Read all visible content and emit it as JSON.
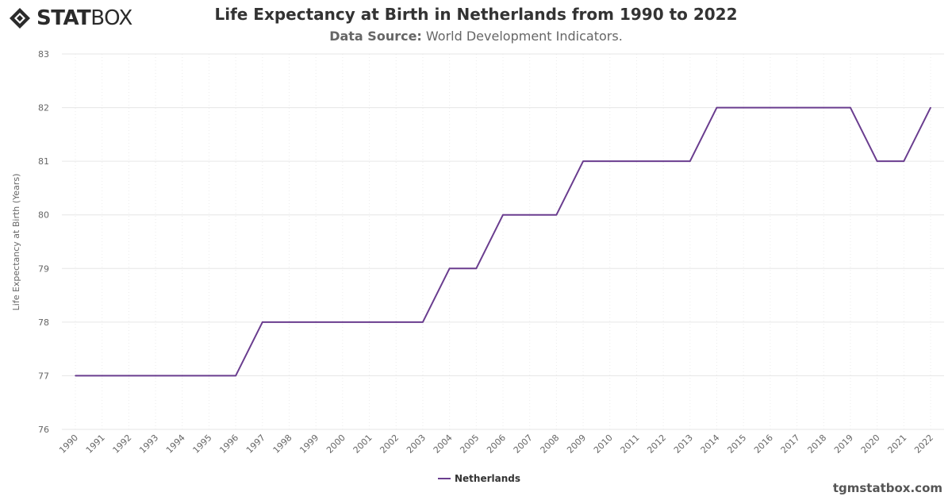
{
  "brand": {
    "logo_bold": "STAT",
    "logo_light": "BOX",
    "watermark": "tgmstatbox.com"
  },
  "header": {
    "title": "Life Expectancy at Birth in Netherlands from 1990 to 2022",
    "source_label": "Data Source:",
    "source_value": "World Development Indicators."
  },
  "colors": {
    "series": "#6a3d8f",
    "grid": "#e6e6e6",
    "vgrid": "#ececec"
  },
  "chart_data": {
    "type": "line",
    "title": "Life Expectancy at Birth in Netherlands from 1990 to 2022",
    "xlabel": "",
    "ylabel": "Life Expectancy at Birth (Years)",
    "ylim": [
      76,
      83
    ],
    "yticks": [
      76,
      77,
      78,
      79,
      80,
      81,
      82,
      83
    ],
    "grid": true,
    "legend_position": "bottom-center",
    "categories": [
      "1990",
      "1991",
      "1992",
      "1993",
      "1994",
      "1995",
      "1996",
      "1997",
      "1998",
      "1999",
      "2000",
      "2001",
      "2002",
      "2003",
      "2004",
      "2005",
      "2006",
      "2007",
      "2008",
      "2009",
      "2010",
      "2011",
      "2012",
      "2013",
      "2014",
      "2015",
      "2016",
      "2017",
      "2018",
      "2019",
      "2020",
      "2021",
      "2022"
    ],
    "series": [
      {
        "name": "Netherlands",
        "values": [
          77,
          77,
          77,
          77,
          77,
          77,
          77,
          78,
          78,
          78,
          78,
          78,
          78,
          78,
          79,
          79,
          80,
          80,
          80,
          81,
          81,
          81,
          81,
          81,
          82,
          82,
          82,
          82,
          82,
          82,
          81,
          81,
          82
        ]
      }
    ]
  }
}
